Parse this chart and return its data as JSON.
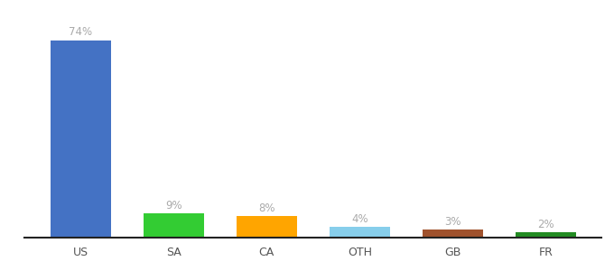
{
  "categories": [
    "US",
    "SA",
    "CA",
    "OTH",
    "GB",
    "FR"
  ],
  "values": [
    74,
    9,
    8,
    4,
    3,
    2
  ],
  "labels": [
    "74%",
    "9%",
    "8%",
    "4%",
    "3%",
    "2%"
  ],
  "bar_colors": [
    "#4472C4",
    "#33CC33",
    "#FFA500",
    "#87CEEB",
    "#A0522D",
    "#228B22"
  ],
  "background_color": "#ffffff",
  "ylim": [
    0,
    84
  ],
  "label_fontsize": 8.5,
  "tick_fontsize": 9,
  "label_color": "#aaaaaa",
  "tick_color": "#555555"
}
